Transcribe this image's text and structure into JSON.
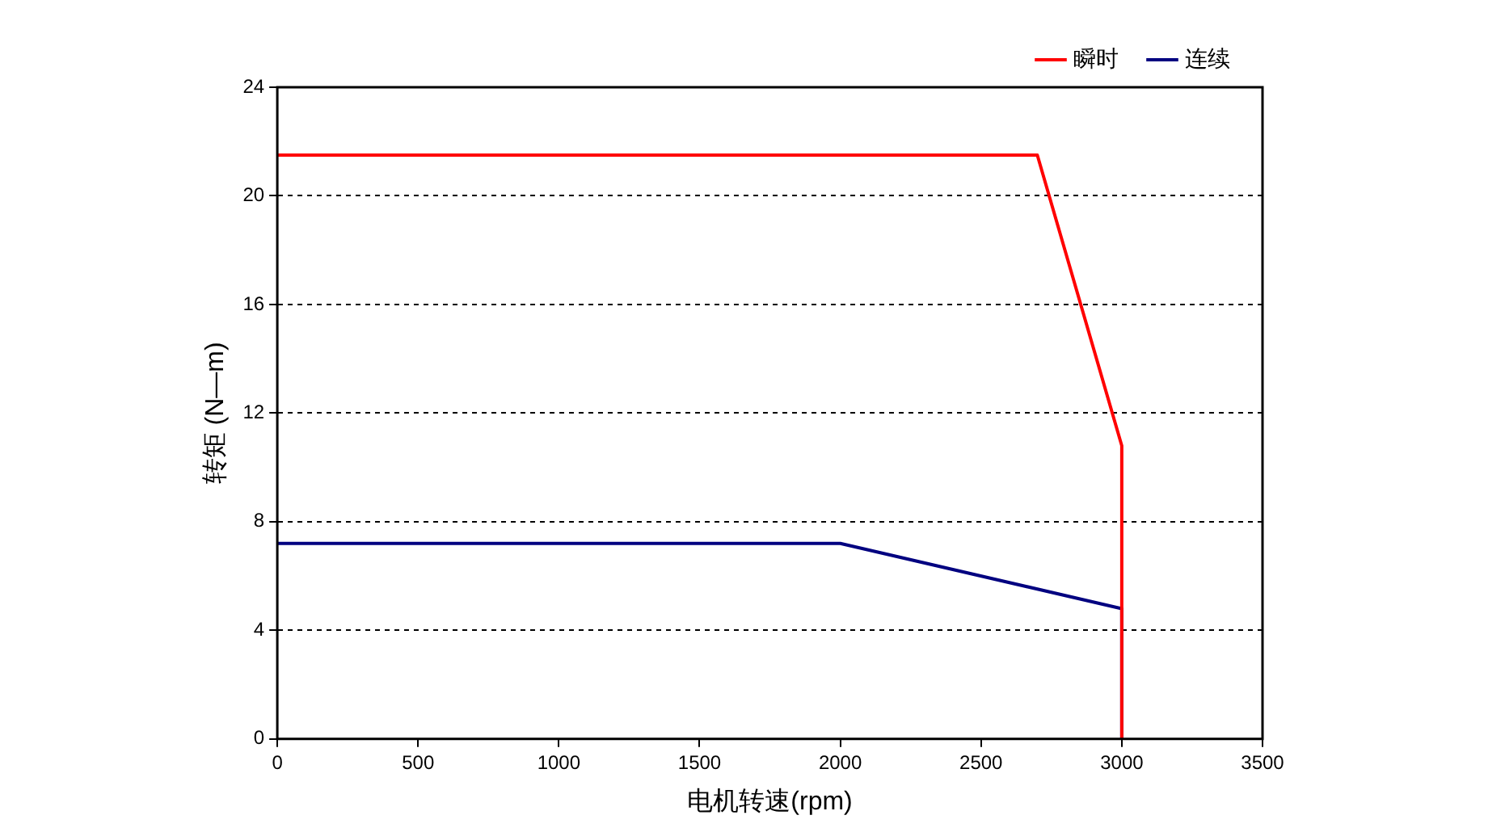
{
  "chart_data": {
    "type": "line",
    "xlabel": "电机转速(rpm)",
    "ylabel": "转矩 (N—m)",
    "series": [
      {
        "name": "瞬时",
        "color": "#ff0000",
        "x": [
          0,
          2700,
          3000,
          3000
        ],
        "values": [
          21.5,
          21.5,
          10.8,
          0
        ]
      },
      {
        "name": "连续",
        "color": "#000080",
        "x": [
          0,
          2000,
          3000,
          3000
        ],
        "values": [
          7.2,
          7.2,
          4.8,
          0
        ]
      }
    ],
    "xlim": [
      0,
      3500
    ],
    "xticks": [
      0,
      500,
      1000,
      1500,
      2000,
      2500,
      3000,
      3500
    ],
    "ylim": [
      0,
      24
    ],
    "yticks": [
      0,
      4,
      8,
      12,
      16,
      20,
      24
    ],
    "grid": "y",
    "legend": "top right",
    "marker": "none",
    "line_style": "solid"
  }
}
